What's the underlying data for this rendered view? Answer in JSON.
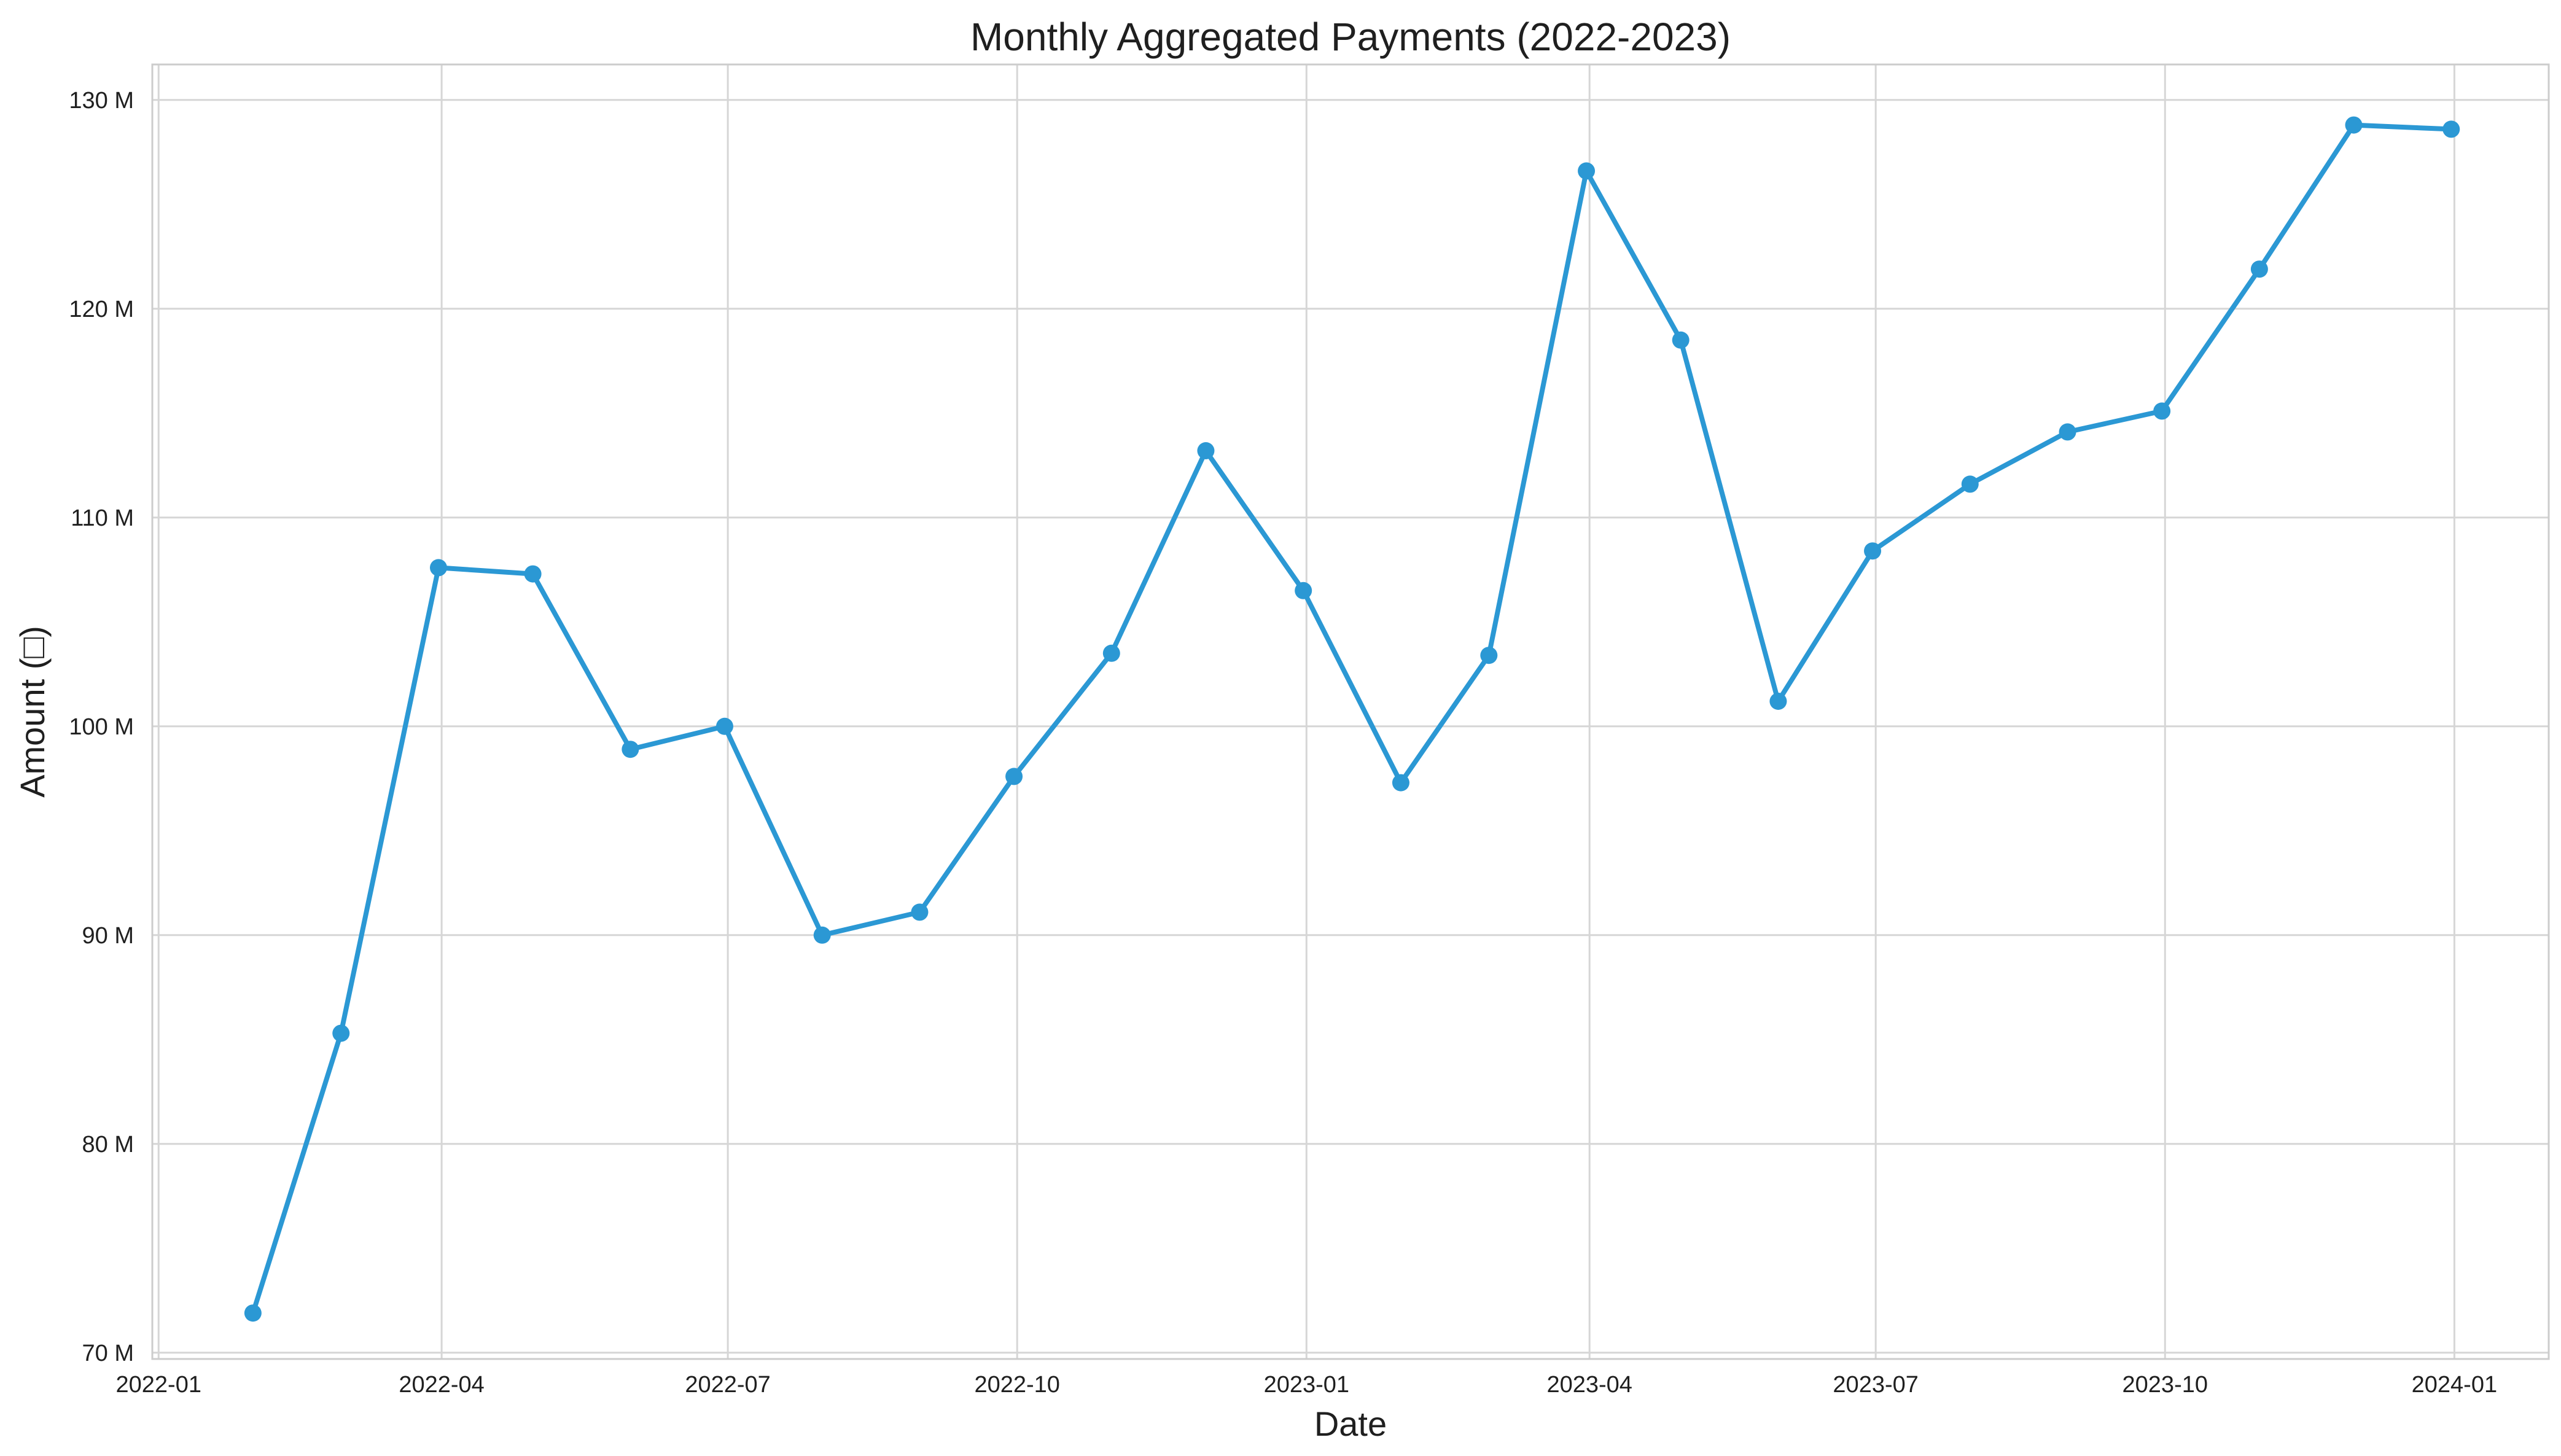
{
  "chart_data": {
    "type": "line",
    "title": "Monthly Aggregated Payments (2022-2023)",
    "xlabel": "Date",
    "ylabel": "Amount (□)",
    "grid": true,
    "x_ticks": [
      "2022-01",
      "2022-04",
      "2022-07",
      "2022-10",
      "2023-01",
      "2023-04",
      "2023-07",
      "2023-10",
      "2024-01"
    ],
    "y_ticks": [
      "70 M",
      "80 M",
      "90 M",
      "100 M",
      "110 M",
      "120 M",
      "130 M"
    ],
    "ylim": [
      69.7,
      131.7
    ],
    "xlim": [
      "2021-12-30",
      "2024-01-31"
    ],
    "series": [
      {
        "color": "#2b98d4",
        "x": [
          "2022-01-31",
          "2022-02-28",
          "2022-03-31",
          "2022-04-30",
          "2022-05-31",
          "2022-06-30",
          "2022-07-31",
          "2022-08-31",
          "2022-09-30",
          "2022-10-31",
          "2022-11-30",
          "2022-12-31",
          "2023-01-31",
          "2023-02-28",
          "2023-03-31",
          "2023-04-30",
          "2023-05-31",
          "2023-06-30",
          "2023-07-31",
          "2023-08-31",
          "2023-09-30",
          "2023-10-31",
          "2023-11-30",
          "2023-12-31"
        ],
        "values": [
          71.9,
          85.3,
          107.6,
          107.3,
          98.9,
          100.0,
          90.0,
          91.1,
          97.6,
          103.5,
          113.2,
          106.5,
          97.3,
          103.4,
          126.6,
          118.5,
          101.2,
          108.4,
          111.6,
          114.1,
          115.1,
          121.9,
          128.8,
          128.6
        ]
      }
    ]
  }
}
